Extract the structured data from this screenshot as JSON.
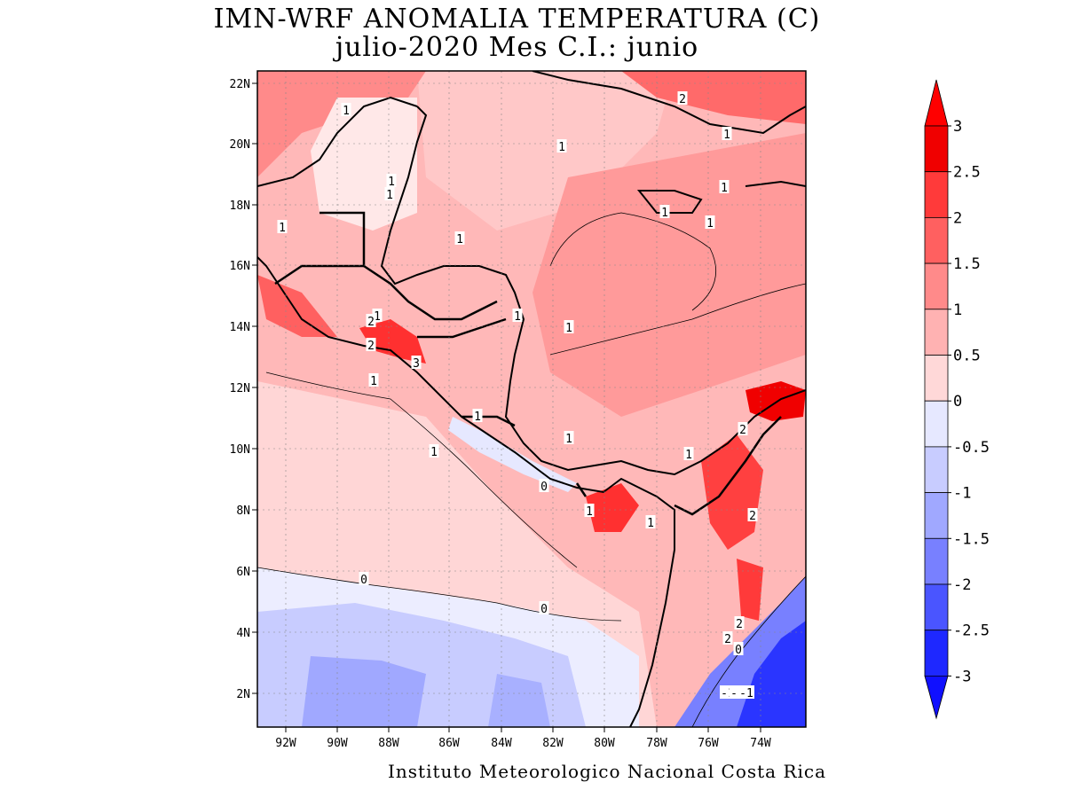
{
  "title": {
    "line1": "IMN-WRF  ANOMALIA TEMPERATURA (C)",
    "line2": "julio-2020 Mes C.I.: junio"
  },
  "footer": "Instituto Meteorologico Nacional Costa Rica",
  "axes": {
    "lon_labels": [
      "92W",
      "90W",
      "88W",
      "86W",
      "84W",
      "82W",
      "80W",
      "78W",
      "76W",
      "74W"
    ],
    "lat_labels": [
      "22N",
      "20N",
      "18N",
      "16N",
      "14N",
      "12N",
      "10N",
      "8N",
      "6N",
      "4N",
      "2N"
    ]
  },
  "colorbar": {
    "labels": [
      "3",
      "2.5",
      "2",
      "1.5",
      "1",
      "0.5",
      "0",
      "-0.5",
      "-1",
      "-1.5",
      "-2",
      "-2.5",
      "-3"
    ],
    "colors": [
      "#f00000",
      "#ff3a3a",
      "#ff6060",
      "#ff8a8a",
      "#ffb2b2",
      "#ffd8d8",
      "#fff0f0",
      "#e6e8ff",
      "#c8ccff",
      "#a0a8ff",
      "#7880ff",
      "#4a55ff",
      "#1e28ff"
    ],
    "top_arrow_color": "#ff0000",
    "bottom_arrow_color": "#1010ff"
  },
  "contour_labels": [
    "1",
    "1",
    "1",
    "1",
    "1",
    "1",
    "1",
    "1",
    "1",
    "1",
    "1",
    "1",
    "1",
    "1",
    "1",
    "1",
    "1",
    "1",
    "1",
    "1",
    "2",
    "2",
    "2",
    "2",
    "2",
    "2",
    "2",
    "3",
    "0",
    "0",
    "0",
    "0",
    "-1",
    "-1",
    "-1"
  ],
  "palette": {
    "ocean_base": "#ffb8b8",
    "red_strong": "#ff2a2a",
    "red_mid": "#ff8080",
    "neutral": "#fff0f0",
    "blue_light": "#e6e8ff",
    "blue_mid": "#a0a8ff",
    "blue_strong": "#2a35ff"
  }
}
